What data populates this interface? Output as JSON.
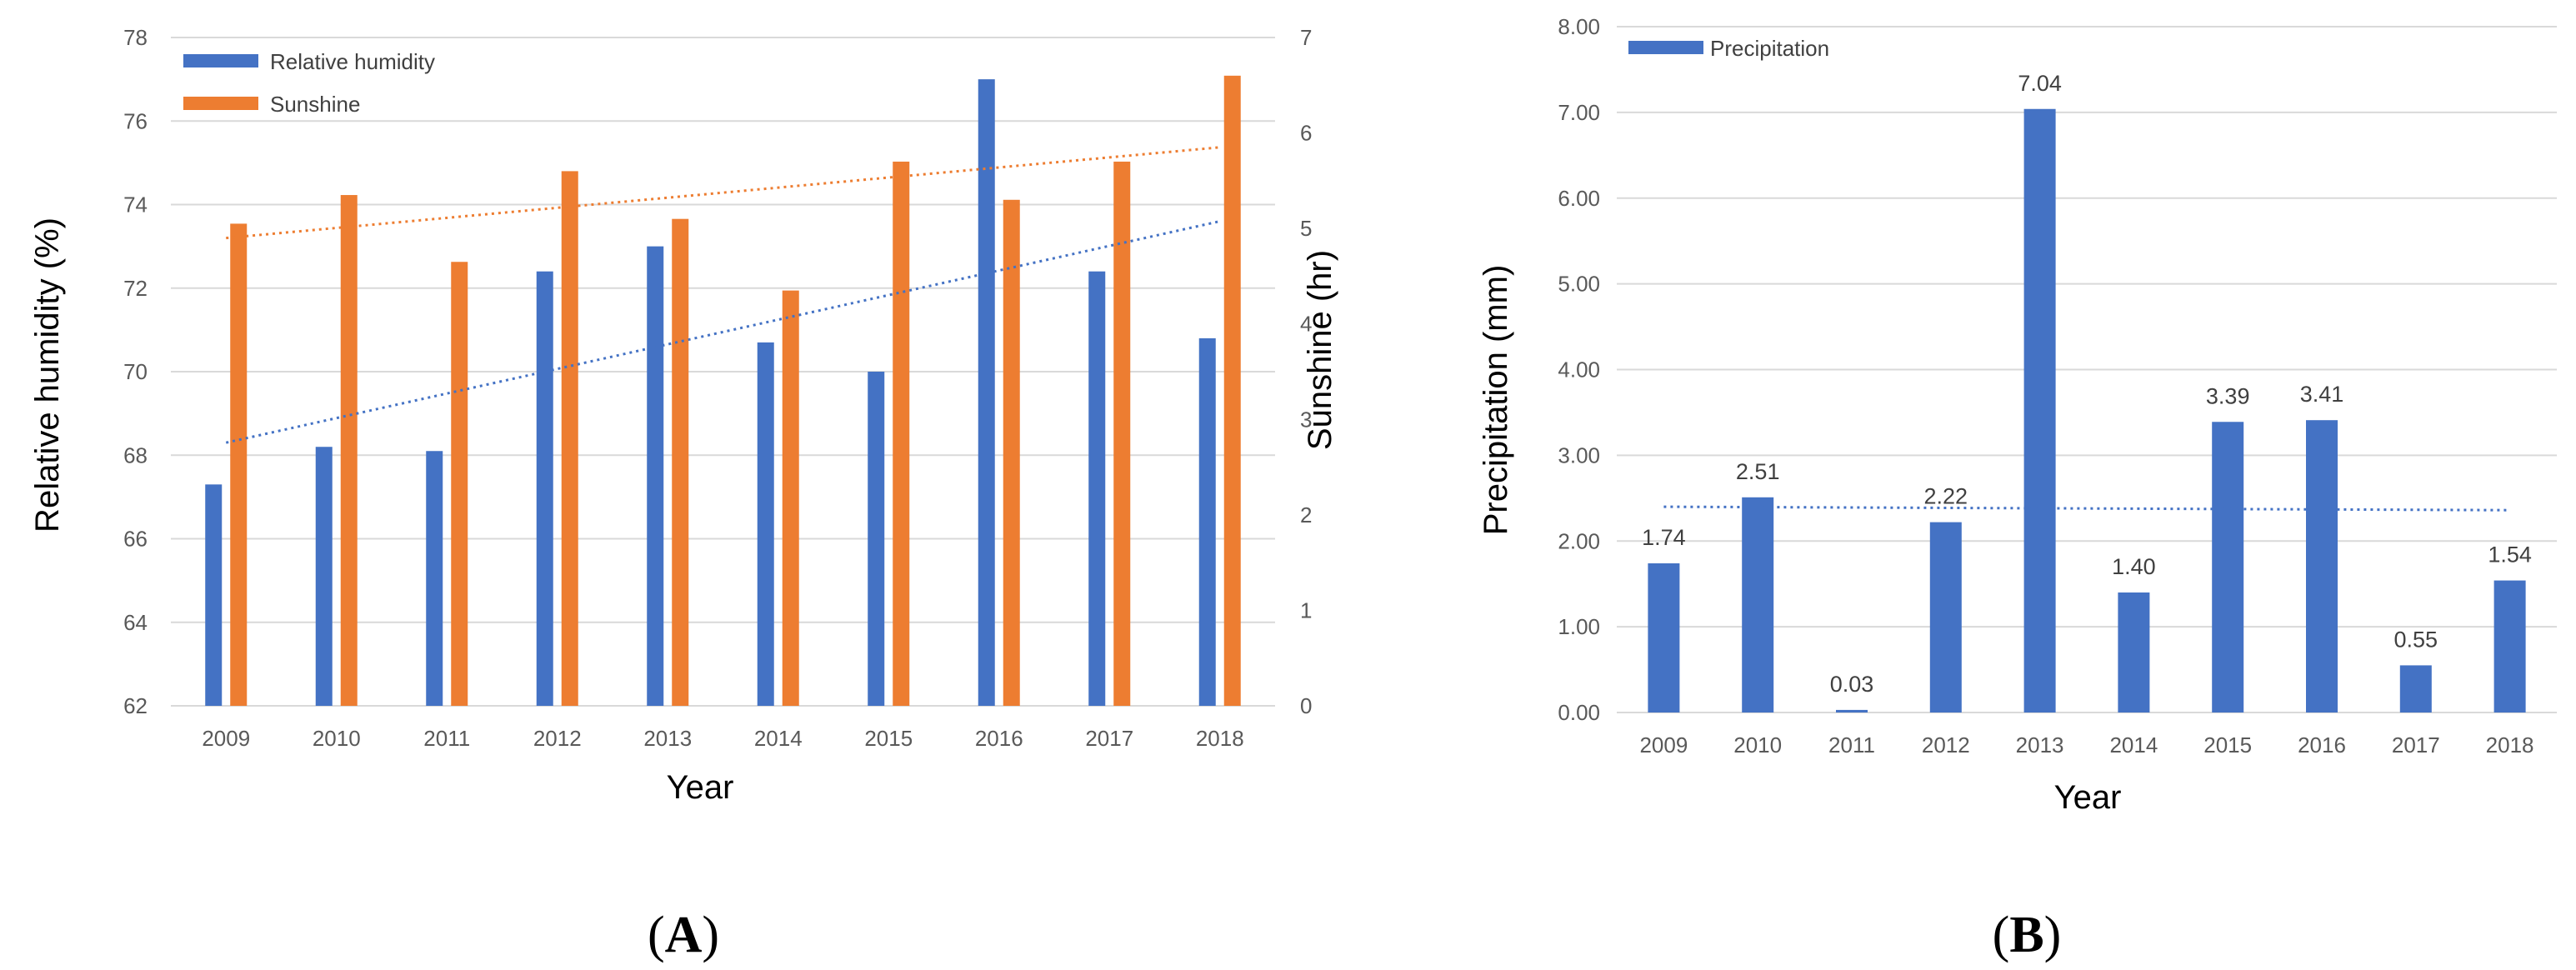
{
  "colors": {
    "humidity": "#4472C4",
    "sunshine": "#ED7D31",
    "precip": "#4472C4",
    "grid": "#D9D9D9",
    "text": "#595959"
  },
  "panel_labels": {
    "a": {
      "open": "(",
      "letter": "A",
      "close": ")"
    },
    "b": {
      "open": "(",
      "letter": "B",
      "close": ")"
    }
  },
  "chart_data": [
    {
      "type": "bar",
      "id": "A",
      "categories": [
        "2009",
        "2010",
        "2011",
        "2012",
        "2013",
        "2014",
        "2015",
        "2016",
        "2017",
        "2018"
      ],
      "series": [
        {
          "name": "Relative humidity",
          "axis": "left",
          "values": [
            67.3,
            68.2,
            68.1,
            72.4,
            73.0,
            70.7,
            70.0,
            77.0,
            72.4,
            70.8
          ]
        },
        {
          "name": "Sunshine",
          "axis": "right",
          "values": [
            5.05,
            5.35,
            4.65,
            5.6,
            5.1,
            4.35,
            5.7,
            5.3,
            5.7,
            6.6
          ]
        }
      ],
      "trendlines": [
        {
          "series": "Relative humidity",
          "start": 68.3,
          "end": 73.6,
          "style": "dotted"
        },
        {
          "series": "Sunshine",
          "start": 4.9,
          "end": 5.85,
          "style": "dotted"
        }
      ],
      "xlabel": "Year",
      "ylabel": "Relative humidity (%)",
      "y2label": "Sunshine (hr)",
      "ylim": [
        62,
        78
      ],
      "yticks": [
        "62",
        "64",
        "66",
        "68",
        "70",
        "72",
        "74",
        "76",
        "78"
      ],
      "y2lim": [
        0,
        7
      ],
      "y2ticks": [
        "0",
        "1",
        "2",
        "3",
        "4",
        "5",
        "6",
        "7"
      ],
      "grid": true,
      "legend": "top-left"
    },
    {
      "type": "bar",
      "id": "B",
      "categories": [
        "2009",
        "2010",
        "2011",
        "2012",
        "2013",
        "2014",
        "2015",
        "2016",
        "2017",
        "2018"
      ],
      "series": [
        {
          "name": "Precipitation",
          "values": [
            1.74,
            2.51,
            0.03,
            2.22,
            7.04,
            1.4,
            3.39,
            3.41,
            0.55,
            1.54
          ]
        }
      ],
      "data_labels": [
        "1.74",
        "2.51",
        "0.03",
        "2.22",
        "7.04",
        "1.40",
        "3.39",
        "3.41",
        "0.55",
        "1.54"
      ],
      "trendline": {
        "series": "Precipitation",
        "start": 2.4,
        "end": 2.36,
        "style": "dotted"
      },
      "xlabel": "Year",
      "ylabel": "Precipitation (mm)",
      "ylim": [
        0,
        8
      ],
      "yticks": [
        "0.00",
        "1.00",
        "2.00",
        "3.00",
        "4.00",
        "5.00",
        "6.00",
        "7.00",
        "8.00"
      ],
      "grid": true,
      "legend": "top-left"
    }
  ]
}
